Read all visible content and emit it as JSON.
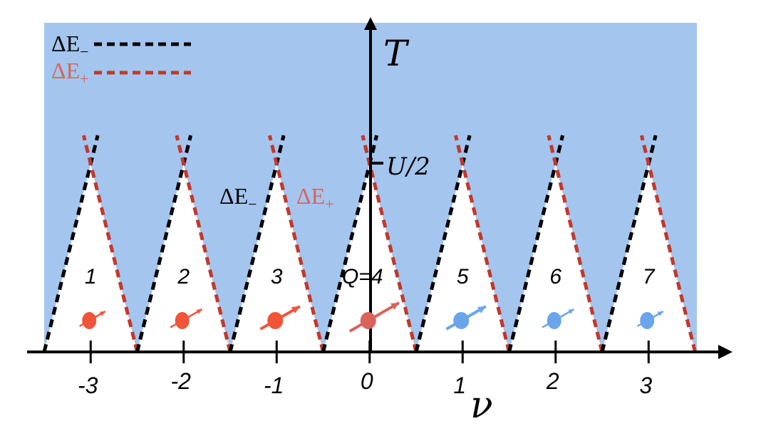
{
  "axes": {
    "x_label": "ν",
    "y_label": "T",
    "y_mark": "U/2",
    "x_ticks": [
      "-3",
      "-2",
      "-1",
      "0",
      "1",
      "2",
      "3"
    ],
    "x_values": [
      -3,
      -2,
      -1,
      0,
      1,
      2,
      3
    ]
  },
  "legend": {
    "minus": {
      "label": "ΔE",
      "sub": "−",
      "color": "#000000"
    },
    "plus": {
      "label": "ΔE",
      "sub": "+",
      "color": "#c0392b"
    }
  },
  "inline_labels": {
    "minus": {
      "label": "ΔE",
      "sub": "−"
    },
    "plus": {
      "label": "ΔE",
      "sub": "+"
    }
  },
  "regions": [
    {
      "label": "1",
      "spin": "red",
      "arrow_len": "short"
    },
    {
      "label": "2",
      "spin": "red",
      "arrow_len": "medium"
    },
    {
      "label": "3",
      "spin": "red",
      "arrow_len": "long"
    },
    {
      "label": "Q=4",
      "spin": "red",
      "arrow_len": "longest"
    },
    {
      "label": "5",
      "spin": "blue",
      "arrow_len": "long"
    },
    {
      "label": "6",
      "spin": "blue",
      "arrow_len": "medium"
    },
    {
      "label": "7",
      "spin": "blue",
      "arrow_len": "short"
    }
  ],
  "colors": {
    "background": "#a4c5ee",
    "triangle": "#ffffff",
    "red_dash": "#c0392b",
    "black_dash": "#000000",
    "red_spin": "#f0553a",
    "red_spin_center": "#d9635a",
    "blue_spin": "#6aa5ec"
  }
}
